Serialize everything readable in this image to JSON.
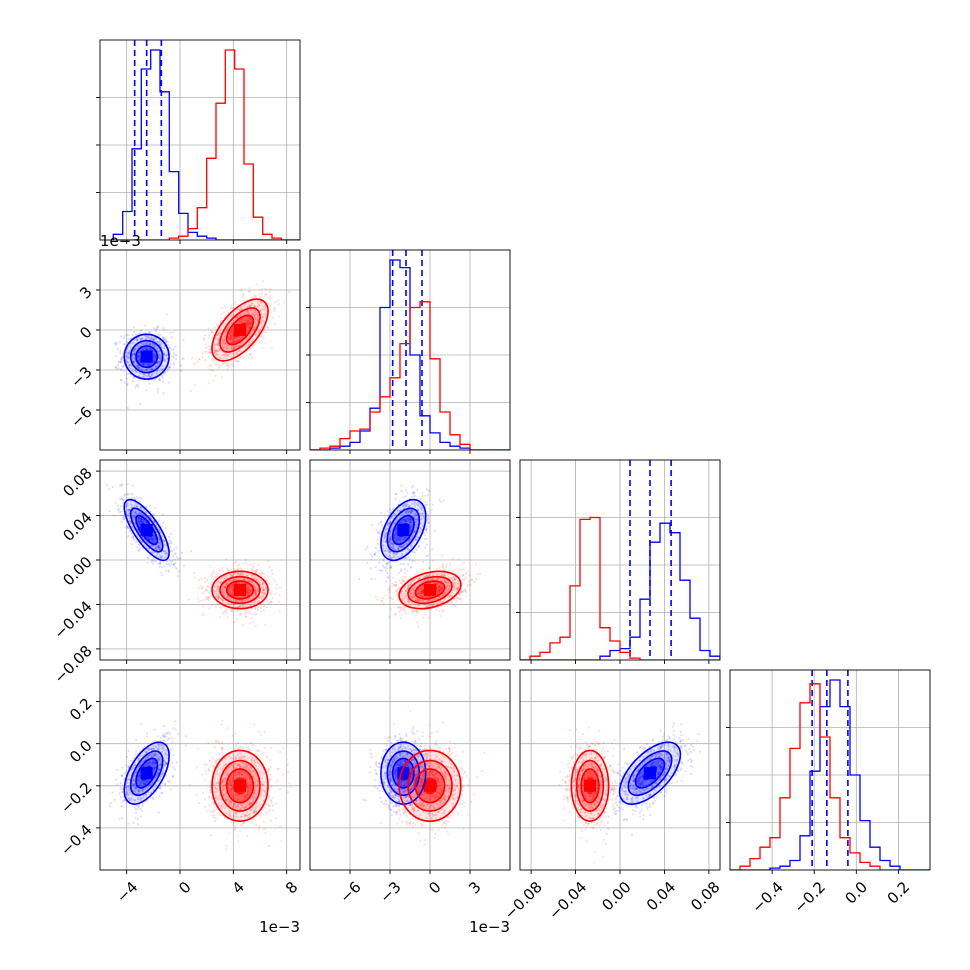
{
  "chart_data": {
    "type": "corner",
    "title": "",
    "n_params": 4,
    "grid": true,
    "colors": {
      "blue": "#0000ff",
      "red": "#ff0000"
    },
    "params": [
      {
        "index": 0,
        "range": [
          -6,
          9
        ],
        "ticks": [
          -4,
          0,
          4,
          8
        ],
        "tick_labels": [
          "−4",
          "0",
          "4",
          "8"
        ],
        "offset_text": "1e−3"
      },
      {
        "index": 1,
        "range": [
          -9,
          6
        ],
        "ticks": [
          -6,
          -3,
          0,
          3
        ],
        "tick_labels": [
          "−6",
          "−3",
          "0",
          "3"
        ],
        "offset_text": "1e−3"
      },
      {
        "index": 2,
        "range": [
          -0.09,
          0.09
        ],
        "ticks": [
          -0.08,
          -0.04,
          0.0,
          0.04,
          0.08
        ],
        "tick_labels": [
          "−0.08",
          "−0.04",
          "0.00",
          "0.04",
          "0.08"
        ],
        "offset_text": ""
      },
      {
        "index": 3,
        "range": [
          -0.6,
          0.35
        ],
        "ticks": [
          -0.4,
          -0.2,
          0.0,
          0.2
        ],
        "tick_labels": [
          "−0.4",
          "−0.2",
          "0.0",
          "0.2"
        ],
        "offset_text": ""
      }
    ],
    "series": [
      {
        "color": "blue",
        "mean": [
          -2.5,
          -2.0,
          0.027,
          -0.14
        ],
        "sd": [
          0.8,
          0.8,
          0.013,
          0.07
        ],
        "corr": [
          [
            0,
            1,
            0.0
          ],
          [
            0,
            2,
            -0.75
          ],
          [
            0,
            3,
            0.55
          ],
          [
            1,
            2,
            0.45
          ],
          [
            1,
            3,
            0.0
          ],
          [
            2,
            3,
            0.6
          ]
        ],
        "quantiles": [
          [
            -3.4,
            -2.5,
            -1.4
          ],
          [
            -2.8,
            -1.8,
            -0.6
          ],
          [
            0.009,
            0.027,
            0.046
          ],
          [
            -0.21,
            -0.14,
            -0.04
          ]
        ],
        "histograms": [
          {
            "edges": [
              -5,
              9
            ],
            "counts": [
              0.03,
              0.15,
              0.48,
              0.9,
              1.0,
              0.78,
              0.36,
              0.14,
              0.04,
              0.02,
              0.01,
              0.0,
              0.0,
              0.0,
              0.0,
              0.0,
              0.0,
              0.0,
              0.0,
              0.0
            ]
          },
          {
            "edges": [
              -9,
              6
            ],
            "counts": [
              0.0,
              0.0,
              0.01,
              0.02,
              0.04,
              0.1,
              0.22,
              0.75,
              1.0,
              0.96,
              0.5,
              0.18,
              0.09,
              0.04,
              0.02,
              0.01,
              0.0,
              0.0,
              0.0,
              0.0
            ]
          },
          {
            "edges": [
              -0.09,
              0.09
            ],
            "counts": [
              0.0,
              0.0,
              0.0,
              0.0,
              0.0,
              0.0,
              0.0,
              0.0,
              0.02,
              0.05,
              0.06,
              0.12,
              0.32,
              0.62,
              0.72,
              0.67,
              0.42,
              0.22,
              0.05,
              0.02
            ]
          },
          {
            "edges": [
              -0.6,
              0.35
            ],
            "counts": [
              0.0,
              0.0,
              0.0,
              0.0,
              0.01,
              0.02,
              0.05,
              0.18,
              0.52,
              0.86,
              1.0,
              0.86,
              0.5,
              0.26,
              0.12,
              0.05,
              0.02,
              0.0,
              0.0,
              0.0
            ]
          }
        ]
      },
      {
        "color": "red",
        "mean": [
          4.5,
          0.0,
          -0.027,
          -0.2
        ],
        "sd": [
          1.0,
          1.1,
          0.008,
          0.08
        ],
        "corr": [
          [
            0,
            1,
            0.6
          ],
          [
            0,
            2,
            0.0
          ],
          [
            0,
            3,
            0.0
          ],
          [
            1,
            2,
            0.3
          ],
          [
            1,
            3,
            0.0
          ],
          [
            2,
            3,
            0.0
          ]
        ],
        "quantiles": [],
        "histograms": [
          {
            "edges": [
              -5,
              9
            ],
            "counts": [
              0.0,
              0.0,
              0.0,
              0.0,
              0.0,
              0.0,
              0.01,
              0.02,
              0.06,
              0.17,
              0.43,
              0.72,
              1.0,
              0.9,
              0.4,
              0.12,
              0.03,
              0.01,
              0.0,
              0.0
            ]
          },
          {
            "edges": [
              -9,
              6
            ],
            "counts": [
              0.0,
              0.01,
              0.02,
              0.06,
              0.1,
              0.11,
              0.2,
              0.28,
              0.38,
              0.56,
              0.75,
              0.78,
              0.48,
              0.2,
              0.08,
              0.03,
              0.0,
              0.0,
              0.0,
              0.0
            ]
          },
          {
            "edges": [
              -0.09,
              0.09
            ],
            "counts": [
              0.0,
              0.02,
              0.04,
              0.09,
              0.12,
              0.39,
              0.74,
              0.75,
              0.17,
              0.1,
              0.04,
              0.01,
              0.0,
              0.0,
              0.0,
              0.0,
              0.0,
              0.0,
              0.0,
              0.0
            ]
          },
          {
            "edges": [
              -0.6,
              0.35
            ],
            "counts": [
              0.0,
              0.02,
              0.06,
              0.12,
              0.17,
              0.38,
              0.64,
              0.88,
              0.98,
              0.7,
              0.38,
              0.17,
              0.09,
              0.04,
              0.02,
              0.0,
              0.0,
              0.0,
              0.0,
              0.0
            ]
          }
        ]
      }
    ]
  }
}
